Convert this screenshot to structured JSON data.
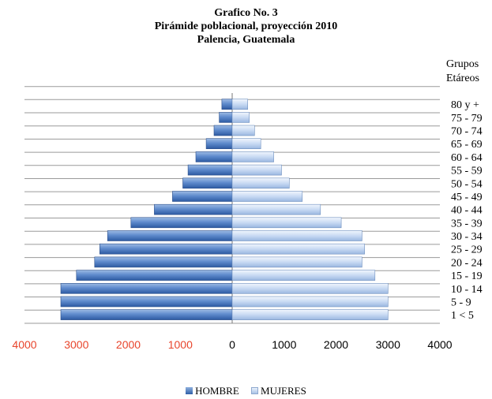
{
  "chart_data": {
    "type": "bar",
    "orientation": "horizontal",
    "layout": "population-pyramid",
    "title": [
      "Grafico No. 3",
      "Pirámide poblacional, proyección 2010",
      "Palencia, Guatemala"
    ],
    "axis_title": [
      "Grupos",
      "Etáreos"
    ],
    "categories": [
      "1 < 5",
      "5 - 9",
      "10 - 14",
      "15 - 19",
      "20 - 24",
      "25 - 29",
      "30 - 34",
      "35 - 39",
      "40 - 44",
      "45 - 49",
      "50 - 54",
      "55 - 59",
      "60 - 64",
      "65 - 69",
      "70 - 74",
      "75 - 79",
      "80 y +"
    ],
    "series": [
      {
        "name": "HOMBRE",
        "color": "#4a78bf",
        "values": [
          3300,
          3300,
          3300,
          3000,
          2650,
          2550,
          2400,
          1950,
          1500,
          1150,
          950,
          850,
          700,
          500,
          350,
          250,
          200
        ]
      },
      {
        "name": "MUJERES",
        "color": "#b9cff0",
        "values": [
          3000,
          3000,
          3000,
          2750,
          2500,
          2550,
          2500,
          2100,
          1700,
          1350,
          1100,
          950,
          800,
          550,
          430,
          330,
          300
        ]
      }
    ],
    "xlim": [
      -4000,
      4000
    ],
    "x_ticks": [
      {
        "value": -4000,
        "label": "4000"
      },
      {
        "value": -3000,
        "label": "3000"
      },
      {
        "value": -2000,
        "label": "2000"
      },
      {
        "value": -1000,
        "label": "1000"
      },
      {
        "value": 0,
        "label": "0"
      },
      {
        "value": 1000,
        "label": "1000"
      },
      {
        "value": 2000,
        "label": "2000"
      },
      {
        "value": 3000,
        "label": "3000"
      },
      {
        "value": 4000,
        "label": "4000"
      }
    ],
    "negative_tick_color": "#e8452c",
    "grid": true,
    "legend_position": "bottom"
  }
}
